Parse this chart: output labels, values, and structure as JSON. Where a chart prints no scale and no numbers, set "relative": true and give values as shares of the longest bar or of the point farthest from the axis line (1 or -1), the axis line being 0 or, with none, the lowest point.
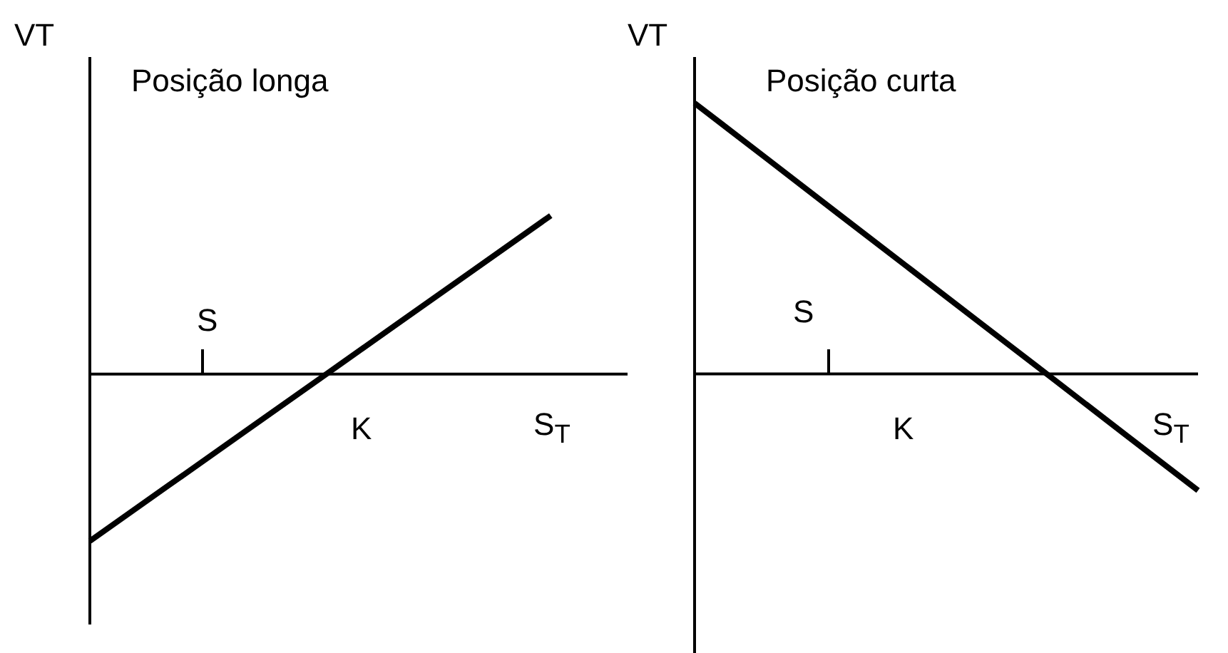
{
  "chart_data": [
    {
      "type": "line",
      "title": "Posição longa",
      "ylabel": "VT",
      "relative": true,
      "marker": "none",
      "line_style": "solid",
      "categories": [
        null,
        null,
        null,
        null,
        null,
        null,
        null,
        null
      ],
      "series": [
        {
          "color": "#000000",
          "values": [
            -1,
            -0.675,
            -0.35,
            -0.025,
            0.3,
            0.625,
            0.95,
            null
          ]
        }
      ],
      "annotations": [
        "S",
        "K",
        "S$_{T}$"
      ]
    },
    {
      "type": "line",
      "title": "Posição curta",
      "ylabel": "VT",
      "relative": true,
      "marker": "none",
      "line_style": "solid",
      "categories": [
        null,
        null,
        null,
        null,
        null,
        null,
        null,
        null
      ],
      "series": [
        {
          "color": "#000000",
          "values": [
            1,
            0.796,
            0.591,
            0.387,
            0.183,
            -0.021,
            -0.226,
            -0.43
          ]
        }
      ],
      "annotations": [
        "S",
        "K",
        "S$_{T}$"
      ]
    }
  ]
}
